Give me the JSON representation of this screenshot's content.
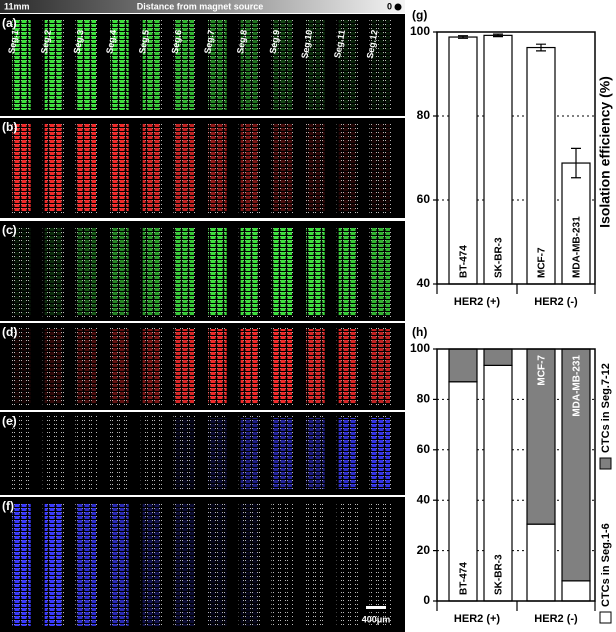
{
  "figure": {
    "top_bar": {
      "left": "11mm",
      "center": "Distance from magnet source",
      "right": "0"
    },
    "panel_labels": [
      "(a)",
      "(b)",
      "(c)",
      "(d)",
      "(e)",
      "(f)"
    ],
    "segments": [
      "Seg.1",
      "Seg.2",
      "Seg.3",
      "Seg.4",
      "Seg.5",
      "Seg.6",
      "Seg.7",
      "Seg.8",
      "Seg.9",
      "Seg.10",
      "Seg.11",
      "Seg.12"
    ],
    "scale_bar": "400μm"
  },
  "chart_data": [
    {
      "type": "bar",
      "panel": "(g)",
      "categories": [
        "BT-474",
        "SK-BR-3",
        "MCF-7",
        "MDA-MB-231"
      ],
      "values": [
        98.8,
        99.2,
        96.3,
        68.8
      ],
      "errors": [
        0.3,
        0.3,
        0.8,
        3.5
      ],
      "color": "#ffffff",
      "ylabel": "Isolation efficiency (%)",
      "groups": [
        "HER2 (+)",
        "HER2 (-)"
      ],
      "ylim": [
        40,
        100
      ],
      "yticks": [
        40,
        60,
        80,
        100
      ],
      "grid": true
    },
    {
      "type": "stacked_bar",
      "panel": "(h)",
      "categories": [
        "BT-474",
        "SK-BR-3",
        "MCF-7",
        "MDA-MB-231"
      ],
      "series": [
        {
          "name": "CTCs in Seg.1-6",
          "color": "#ffffff",
          "values": [
            87,
            93.5,
            30.5,
            8
          ]
        },
        {
          "name": "CTCs in Seg.7-12",
          "color": "#808080",
          "values": [
            13,
            6.5,
            69.5,
            92
          ]
        }
      ],
      "groups": [
        "HER2 (+)",
        "HER2 (-)"
      ],
      "ylim": [
        0,
        100
      ],
      "yticks": [
        0,
        20,
        40,
        60,
        80,
        100
      ],
      "grid": true,
      "legend": "right"
    }
  ]
}
